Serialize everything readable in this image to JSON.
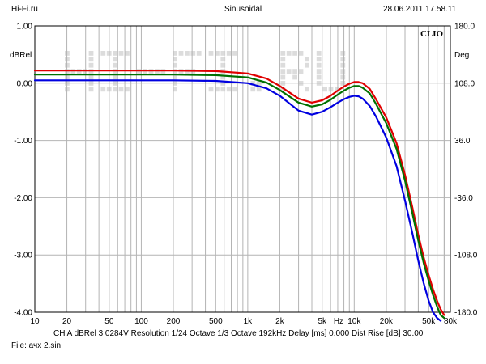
{
  "header": {
    "source": "Hi-Fi.ru",
    "mode": "Sinusoidal",
    "datetime": "28.06.2011 17.58.11"
  },
  "footer": {
    "settings": "CH A   dBRel 3.0284V   Resolution 1/24 Octave   1/3 Octave   192kHz   Delay [ms] 0.000    Dist Rise [dB] 30.00",
    "file": "File: ачх 2.sin"
  },
  "watermark": "HI-FI.RU",
  "brand": "CLIO",
  "chart_data": {
    "type": "line",
    "xscale": "log",
    "xlim": [
      10,
      80000
    ],
    "ylim": [
      -4.0,
      1.0
    ],
    "y2lim": [
      -180.0,
      180.0
    ],
    "ylabel": "dBRel",
    "y2label": "Deg",
    "xunit": "Hz",
    "grid": true,
    "xticks": [
      {
        "v": 10,
        "label": "10"
      },
      {
        "v": 20,
        "label": "20"
      },
      {
        "v": 50,
        "label": "50"
      },
      {
        "v": 100,
        "label": "100"
      },
      {
        "v": 200,
        "label": "200"
      },
      {
        "v": 500,
        "label": "500"
      },
      {
        "v": 1000,
        "label": "1k"
      },
      {
        "v": 2000,
        "label": "2k"
      },
      {
        "v": 5000,
        "label": "5k"
      },
      {
        "v": 10000,
        "label": "10k"
      },
      {
        "v": 20000,
        "label": "20k"
      },
      {
        "v": 50000,
        "label": "50k"
      },
      {
        "v": 80000,
        "label": "80k"
      }
    ],
    "yticks": [
      {
        "v": 1.0,
        "label": "1.00"
      },
      {
        "v": 0.0,
        "label": "0.00"
      },
      {
        "v": -1.0,
        "label": "-1.00"
      },
      {
        "v": -2.0,
        "label": "-2.00"
      },
      {
        "v": -3.0,
        "label": "-3.00"
      },
      {
        "v": -4.0,
        "label": "-4.00"
      }
    ],
    "y2ticks": [
      {
        "v": 180.0,
        "label": "180.0"
      },
      {
        "v": 108.0,
        "label": "108.0"
      },
      {
        "v": 36.0,
        "label": "36.0"
      },
      {
        "v": -36.0,
        "label": "-36.0"
      },
      {
        "v": -108.0,
        "label": "-108.0"
      },
      {
        "v": -180.0,
        "label": "-180.0"
      }
    ],
    "series": [
      {
        "color": "#e00000",
        "x": [
          10,
          20,
          50,
          100,
          200,
          500,
          1000,
          1500,
          2000,
          3000,
          4000,
          5000,
          6000,
          7000,
          8000,
          9000,
          10000,
          11000,
          12000,
          14000,
          16000,
          20000,
          25000,
          30000,
          35000,
          40000,
          45000,
          50000,
          55000,
          60000,
          65000,
          70000
        ],
        "y": [
          0.22,
          0.22,
          0.22,
          0.22,
          0.22,
          0.21,
          0.17,
          0.08,
          -0.05,
          -0.27,
          -0.34,
          -0.3,
          -0.22,
          -0.13,
          -0.06,
          -0.01,
          0.02,
          0.02,
          0.0,
          -0.1,
          -0.28,
          -0.6,
          -1.05,
          -1.6,
          -2.15,
          -2.65,
          -3.05,
          -3.35,
          -3.6,
          -3.8,
          -3.95,
          -4.05
        ]
      },
      {
        "color": "#007000",
        "x": [
          10,
          20,
          50,
          100,
          200,
          500,
          1000,
          1500,
          2000,
          3000,
          4000,
          5000,
          6000,
          7000,
          8000,
          9000,
          10000,
          11000,
          12000,
          14000,
          16000,
          20000,
          25000,
          30000,
          35000,
          40000,
          45000,
          50000,
          55000,
          60000,
          65000,
          70000
        ],
        "y": [
          0.15,
          0.15,
          0.15,
          0.15,
          0.15,
          0.14,
          0.1,
          0.01,
          -0.12,
          -0.34,
          -0.41,
          -0.37,
          -0.29,
          -0.2,
          -0.13,
          -0.08,
          -0.05,
          -0.05,
          -0.08,
          -0.18,
          -0.36,
          -0.7,
          -1.15,
          -1.7,
          -2.25,
          -2.75,
          -3.15,
          -3.45,
          -3.7,
          -3.9,
          -4.05,
          -4.1
        ]
      },
      {
        "color": "#0000e0",
        "x": [
          10,
          20,
          50,
          100,
          200,
          500,
          1000,
          1500,
          2000,
          3000,
          4000,
          5000,
          6000,
          7000,
          8000,
          9000,
          10000,
          11000,
          12000,
          14000,
          16000,
          20000,
          25000,
          30000,
          35000,
          40000,
          45000,
          50000,
          55000,
          60000,
          65000
        ],
        "y": [
          0.05,
          0.05,
          0.05,
          0.05,
          0.05,
          0.04,
          0.0,
          -0.09,
          -0.22,
          -0.48,
          -0.55,
          -0.5,
          -0.42,
          -0.34,
          -0.28,
          -0.24,
          -0.22,
          -0.23,
          -0.27,
          -0.4,
          -0.58,
          -0.95,
          -1.45,
          -2.05,
          -2.6,
          -3.1,
          -3.5,
          -3.8,
          -4.0,
          -4.1,
          -4.15
        ]
      }
    ]
  }
}
